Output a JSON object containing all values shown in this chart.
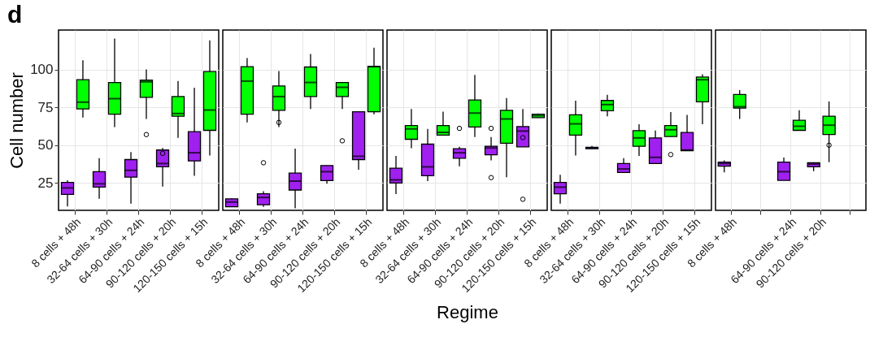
{
  "chart_data": [
    {
      "type": "box",
      "annotations": [
        "d"
      ],
      "ylabel": "Cell number",
      "categories": [
        "8 cells + 48h",
        "32-64 cells + 30h",
        "64-90 cells + 24h",
        "90-120 cells + 20h",
        "120-150 cells + 15h"
      ],
      "ylim": [
        7,
        126
      ],
      "yticks": [
        25,
        50,
        75,
        100
      ],
      "grid": true,
      "series": [
        {
          "color": "#a020f0",
          "boxes": [
            {
              "low": 9.6,
              "q1": 17.5,
              "median": 21.8,
              "q3": 25.4,
              "high": 26.8
            },
            {
              "low": 14.6,
              "q1": 22.3,
              "median": 24.5,
              "q3": 32.5,
              "high": 41.4
            },
            {
              "low": 11.4,
              "q1": 28.9,
              "median": 33.4,
              "q3": 40.5,
              "high": 45.4
            },
            {
              "low": 22.7,
              "q1": 35.7,
              "median": 37.9,
              "q3": 46.8,
              "high": 48.2,
              "outliers": [
                44.6
              ]
            },
            {
              "low": 29.8,
              "q1": 39.6,
              "median": 45,
              "q3": 58.9,
              "high": 87.9
            }
          ]
        },
        {
          "color": "#00ff00",
          "boxes": [
            {
              "low": 68.2,
              "q1": 73.9,
              "median": 78.4,
              "q3": 93.2,
              "high": 106
            },
            {
              "low": 62,
              "q1": 70.4,
              "median": 80.7,
              "q3": 91.4,
              "high": 120.4
            },
            {
              "low": 67.3,
              "q1": 81.6,
              "median": 91.8,
              "q3": 92.9,
              "high": 100,
              "outliers": [
                57
              ]
            },
            {
              "low": 54.8,
              "q1": 69.1,
              "median": 70.9,
              "q3": 82.1,
              "high": 92.3
            },
            {
              "low": 43.2,
              "q1": 59.8,
              "median": 73.2,
              "q3": 98.6,
              "high": 119.1
            }
          ]
        }
      ]
    },
    {
      "type": "box",
      "categories": [
        "8 cells + 48h",
        "32-64 cells + 30h",
        "64-90 cells + 24h",
        "90-120 cells + 20h",
        "120-150 cells + 15h"
      ],
      "ylim": [
        7,
        126
      ],
      "yticks": [
        25,
        50,
        75,
        100
      ],
      "grid": true,
      "tick_labels": "x",
      "series": [
        {
          "color": "#a020f0",
          "boxes": [
            {
              "low": 9.3,
              "q1": 9.3,
              "median": 12.5,
              "q3": 14.6,
              "high": 15
            },
            {
              "low": 9.3,
              "q1": 10.7,
              "median": 15.5,
              "q3": 17.9,
              "high": 19.6,
              "outliers": [
                38.4
              ]
            },
            {
              "low": 8.4,
              "q1": 20.4,
              "median": 26.3,
              "q3": 31.6,
              "high": 47.7
            },
            {
              "low": 24.5,
              "q1": 26.6,
              "median": 32.5,
              "q3": 36.6,
              "high": 36.6
            },
            {
              "low": 33.8,
              "q1": 40.5,
              "median": 42.7,
              "q3": 72.1,
              "high": 72.1
            }
          ]
        },
        {
          "color": "#00ff00",
          "boxes": [
            {
              "low": 65,
              "q1": 70.4,
              "median": 92.3,
              "q3": 101.8,
              "high": 107.5
            },
            {
              "low": 62,
              "q1": 73,
              "median": 82.1,
              "q3": 89.1,
              "high": 98.9,
              "outliers": [
                65
              ]
            },
            {
              "low": 73.9,
              "q1": 82.1,
              "median": 91.4,
              "q3": 101.6,
              "high": 110.2
            },
            {
              "low": 73.9,
              "q1": 82.1,
              "median": 88.2,
              "q3": 91.4,
              "high": 91.4,
              "outliers": [
                52.9
              ]
            },
            {
              "low": 70.4,
              "q1": 72.1,
              "median": 101.8,
              "q3": 102.1,
              "high": 114.3
            }
          ]
        }
      ]
    },
    {
      "type": "box",
      "xlabel": "Regime",
      "categories": [
        "8 cells + 48h",
        "32-64 cells + 30h",
        "64-90 cells + 24h",
        "90-120 cells + 20h",
        "120-150 cells + 15h"
      ],
      "ylim": [
        7,
        126
      ],
      "yticks": [
        25,
        50,
        75,
        100
      ],
      "grid": true,
      "tick_labels": "x",
      "series": [
        {
          "color": "#a020f0",
          "boxes": [
            {
              "low": 17.7,
              "q1": 25,
              "median": 27.1,
              "q3": 34.8,
              "high": 42.9
            },
            {
              "low": 26.3,
              "q1": 29.8,
              "median": 35.7,
              "q3": 50.7,
              "high": 60.7
            },
            {
              "low": 36.1,
              "q1": 41.4,
              "median": 45,
              "q3": 47.7,
              "high": 48.9,
              "outliers": [
                61.1
              ]
            },
            {
              "low": 40,
              "q1": 43.6,
              "median": 48.2,
              "q3": 49.3,
              "high": 55.4,
              "outliers": [
                61.1,
                28.6
              ]
            },
            {
              "low": 48.9,
              "q1": 48.9,
              "median": 59.3,
              "q3": 62.3,
              "high": 73.9,
              "outliers": [
                55,
                14.3
              ]
            }
          ]
        },
        {
          "color": "#00ff00",
          "boxes": [
            {
              "low": 48,
              "q1": 53.9,
              "median": 60.7,
              "q3": 62.9,
              "high": 73.9
            },
            {
              "low": 56.6,
              "q1": 56.6,
              "median": 58.4,
              "q3": 62.9,
              "high": 72.1
            },
            {
              "low": 55.4,
              "q1": 62,
              "median": 71.2,
              "q3": 79.8,
              "high": 96.4
            },
            {
              "low": 28.9,
              "q1": 51.3,
              "median": 67.3,
              "q3": 73,
              "high": 81.1
            },
            {
              "low": 68.2,
              "q1": 68.2,
              "median": 69.5,
              "q3": 70.5,
              "high": 70.9
            }
          ]
        }
      ]
    },
    {
      "type": "box",
      "categories": [
        "8 cells + 48h",
        "32-64 cells + 30h",
        "64-90 cells + 24h",
        "90-120 cells + 20h",
        "120-150 cells + 15h"
      ],
      "ylim": [
        7,
        126
      ],
      "yticks": [
        25,
        50,
        75,
        100
      ],
      "grid": true,
      "tick_labels": "x",
      "series": [
        {
          "color": "#a020f0",
          "boxes": [
            {
              "low": 11.4,
              "q1": 17.9,
              "median": 22.3,
              "q3": 25.4,
              "high": 30.4
            },
            {
              "low": 47.7,
              "q1": 47.7,
              "median": 48.2,
              "q3": 48.6,
              "high": 49.5
            },
            {
              "low": 32,
              "q1": 32,
              "median": 34.3,
              "q3": 37.9,
              "high": 41.4
            },
            {
              "low": 37.9,
              "q1": 37.9,
              "median": 42,
              "q3": 54.8,
              "high": 59.6
            },
            {
              "low": 46.4,
              "q1": 46.4,
              "median": 46.8,
              "q3": 58.4,
              "high": 70
            }
          ]
        },
        {
          "color": "#00ff00",
          "boxes": [
            {
              "low": 43.2,
              "q1": 56.6,
              "median": 64.1,
              "q3": 70,
              "high": 79.3
            },
            {
              "low": 69.1,
              "q1": 72.7,
              "median": 76.8,
              "q3": 79.5,
              "high": 83.2
            },
            {
              "low": 42.9,
              "q1": 49.3,
              "median": 54.8,
              "q3": 59.6,
              "high": 63.8
            },
            {
              "low": 55.7,
              "q1": 55.7,
              "median": 60.2,
              "q3": 62.9,
              "high": 71.8,
              "outliers": [
                43.8
              ]
            },
            {
              "low": 63.8,
              "q1": 78.6,
              "median": 93.2,
              "q3": 95,
              "high": 96.8
            }
          ]
        }
      ]
    },
    {
      "type": "box",
      "categories": [
        "8 cells + 48h",
        null,
        "64-90 cells + 24h",
        "90-120 cells + 20h",
        null
      ],
      "ylim": [
        7,
        126
      ],
      "yticks": [
        25,
        50,
        75,
        100
      ],
      "grid": true,
      "tick_labels": "x",
      "series": [
        {
          "color": "#a020f0",
          "boxes": [
            {
              "low": 32.1,
              "q1": 36.1,
              "median": 37.9,
              "q3": 38.8,
              "high": 40
            },
            null,
            {
              "low": 26.8,
              "q1": 26.8,
              "median": 32.5,
              "q3": 38.8,
              "high": 41.8
            },
            {
              "low": 32.9,
              "q1": 35.7,
              "median": 37.5,
              "q3": 38.4,
              "high": 38.4
            },
            null
          ]
        },
        {
          "color": "#00ff00",
          "boxes": [
            {
              "low": 67.3,
              "q1": 74.5,
              "median": 75.4,
              "q3": 83.4,
              "high": 86.4
            },
            null,
            {
              "low": 59.8,
              "q1": 59.8,
              "median": 62.5,
              "q3": 66.4,
              "high": 73
            },
            {
              "low": 38.8,
              "q1": 57.1,
              "median": 63.2,
              "q3": 69.1,
              "high": 78.9,
              "outliers": [
                50
              ]
            },
            null
          ]
        }
      ]
    }
  ]
}
